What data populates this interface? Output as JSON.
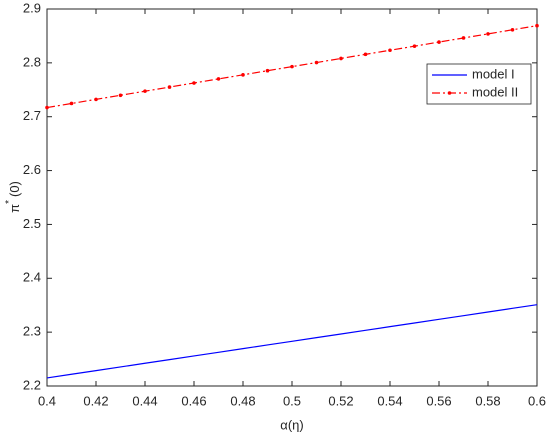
{
  "chart_data": {
    "type": "line",
    "xlabel": "α(η)",
    "ylabel": {
      "base": "π",
      "sup": "*",
      "rest": "(0)"
    },
    "x": [
      0.4,
      0.41,
      0.42,
      0.43,
      0.44,
      0.45,
      0.46,
      0.47,
      0.48,
      0.49,
      0.5,
      0.51,
      0.52,
      0.53,
      0.54,
      0.55,
      0.56,
      0.57,
      0.58,
      0.59,
      0.6
    ],
    "series": [
      {
        "name": "model I",
        "color": "#0000ff",
        "line_style": "solid",
        "marker": "none",
        "values": [
          2.215,
          2.2218,
          2.2286,
          2.2354,
          2.2422,
          2.249,
          2.2558,
          2.2626,
          2.2694,
          2.2762,
          2.283,
          2.2898,
          2.2966,
          2.3034,
          2.3102,
          2.317,
          2.3238,
          2.3306,
          2.3374,
          2.3442,
          2.351
        ]
      },
      {
        "name": "model II",
        "color": "#ff0000",
        "line_style": "dashdot",
        "marker": "dot",
        "values": [
          2.717,
          2.7246,
          2.7322,
          2.7398,
          2.7474,
          2.755,
          2.7626,
          2.7702,
          2.7778,
          2.7854,
          2.793,
          2.8006,
          2.8082,
          2.8158,
          2.8234,
          2.831,
          2.8386,
          2.8462,
          2.8538,
          2.8614,
          2.869
        ]
      }
    ],
    "xlim": [
      0.4,
      0.6
    ],
    "xticks": [
      0.4,
      0.42,
      0.44,
      0.46,
      0.48,
      0.5,
      0.52,
      0.54,
      0.56,
      0.58,
      0.6
    ],
    "ylim": [
      2.2,
      2.9
    ],
    "yticks": [
      2.2,
      2.3,
      2.4,
      2.5,
      2.6,
      2.7,
      2.8,
      2.9
    ],
    "grid": false,
    "legend": "upper-right"
  }
}
